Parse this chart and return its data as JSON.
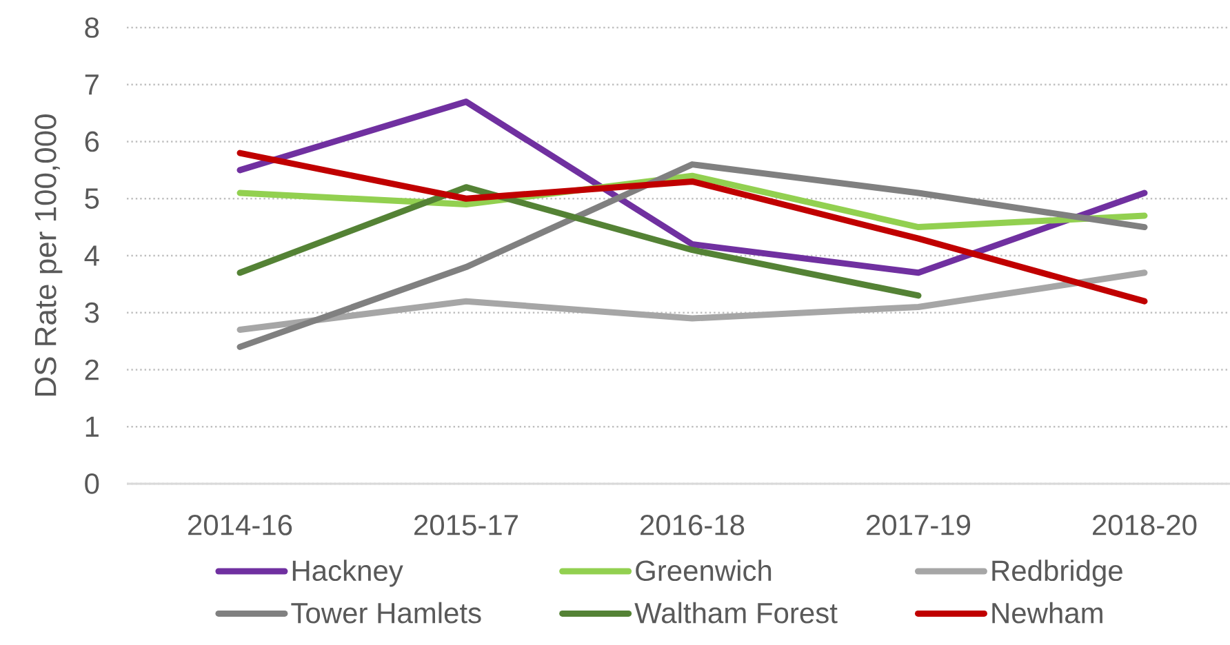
{
  "chart_data": {
    "type": "line",
    "ylabel": "DS Rate per 100,000",
    "categories": [
      "2014-16",
      "2015-17",
      "2016-18",
      "2017-19",
      "2018-20"
    ],
    "series": [
      {
        "name": "Hackney",
        "color": "#7030a0",
        "values": [
          5.5,
          6.7,
          4.2,
          3.7,
          5.1
        ]
      },
      {
        "name": "Greenwich",
        "color": "#92d050",
        "values": [
          5.1,
          4.9,
          5.4,
          4.5,
          4.7
        ]
      },
      {
        "name": "Redbridge",
        "color": "#a6a6a6",
        "values": [
          2.7,
          3.2,
          2.9,
          3.1,
          3.7
        ]
      },
      {
        "name": "Tower Hamlets",
        "color": "#808080",
        "values": [
          2.4,
          3.8,
          5.6,
          5.1,
          4.5
        ]
      },
      {
        "name": "Waltham Forest",
        "color": "#548235",
        "values": [
          3.7,
          5.2,
          4.1,
          3.3,
          null
        ]
      },
      {
        "name": "Newham",
        "color": "#c00000",
        "values": [
          5.8,
          5.0,
          5.3,
          4.3,
          3.2
        ]
      }
    ],
    "ylim": [
      0,
      8
    ],
    "yticks": [
      0,
      1,
      2,
      3,
      4,
      5,
      6,
      7,
      8
    ],
    "grid": "y",
    "legend": "bottom",
    "line_style": "solid"
  }
}
